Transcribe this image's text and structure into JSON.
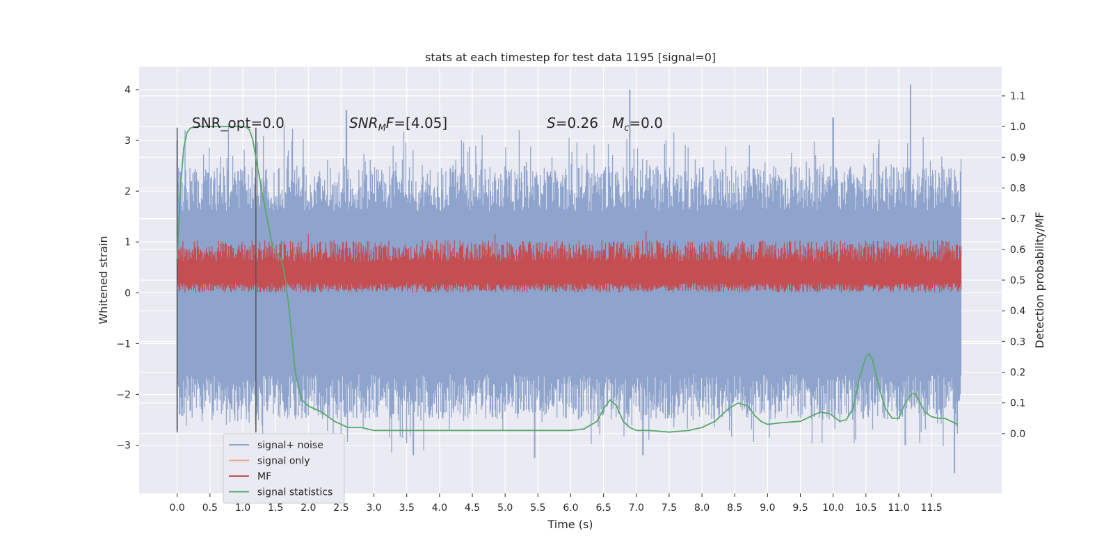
{
  "chart_data": {
    "type": "line",
    "title": "stats at each timestep for test data 1195 [signal=0]",
    "xlabel": "Time (s)",
    "ylabel": "Whitened strain",
    "ylabel_right": "Detection probability/MF",
    "xlim": [
      -0.58,
      12.57
    ],
    "ylim": [
      -3.95,
      4.45
    ],
    "ylim_right": [
      -0.195,
      1.195
    ],
    "x_ticks": [
      0.0,
      0.5,
      1.0,
      1.5,
      2.0,
      2.5,
      3.0,
      3.5,
      4.0,
      4.5,
      5.0,
      5.5,
      6.0,
      6.5,
      7.0,
      7.5,
      8.0,
      8.5,
      9.0,
      9.5,
      10.0,
      10.5,
      11.0,
      11.5
    ],
    "x_tick_labels": [
      "0.0",
      "0.5",
      "1.0",
      "1.5",
      "2.0",
      "2.5",
      "3.0",
      "3.5",
      "4.0",
      "4.5",
      "5.0",
      "5.5",
      "6.0",
      "6.5",
      "7.0",
      "7.5",
      "8.0",
      "8.5",
      "9.0",
      "9.5",
      "10.0",
      "10.5",
      "11.0",
      "11.5"
    ],
    "y_ticks": [
      4,
      3,
      2,
      1,
      0,
      -1,
      -2,
      -3
    ],
    "y_tick_labels": [
      "4",
      "3",
      "2",
      "1",
      "0",
      "−1",
      "−2",
      "−3"
    ],
    "y_ticks_right": [
      1.1,
      1.0,
      0.9,
      0.8,
      0.7,
      0.6,
      0.5,
      0.4,
      0.3,
      0.2,
      0.1,
      0.0
    ],
    "y_tick_labels_right": [
      "1.1",
      "1.0",
      "0.9",
      "0.8",
      "0.7",
      "0.6",
      "0.5",
      "0.4",
      "0.3",
      "0.2",
      "0.1",
      "0.0"
    ],
    "grid": true,
    "legend_position": "lower-left",
    "legend": [
      {
        "label": "signal+ noise",
        "color": "#8fa4cc"
      },
      {
        "label": "signal only",
        "color": "#e8a98c"
      },
      {
        "label": "MF",
        "color": "#c44e52"
      },
      {
        "label": "signal statistics",
        "color": "#55a868"
      }
    ],
    "annotations": {
      "snr_opt": "SNR_opt=0.0",
      "snr_mf_name": "SNR",
      "snr_mf_sub": "M",
      "snr_mf_tail": "F",
      "snr_mf_value": "=[4.05]",
      "s_name": "S",
      "s_value": "=0.26",
      "mc_name": "M",
      "mc_sub": "c",
      "mc_value": "=0.0"
    },
    "series": [
      {
        "name": "signal+ noise",
        "axis": "left",
        "color": "#8fa4cc",
        "description_envelope": {
          "upper_typical": [
            1.6,
            2.5
          ],
          "lower_typical": [
            -1.6,
            -2.5
          ],
          "peaks": [
            [
              0.0,
              3.0
            ],
            [
              2.58,
              3.6
            ],
            [
              6.9,
              4.0
            ],
            [
              10.0,
              3.45
            ],
            [
              11.18,
              4.1
            ]
          ],
          "troughs": [
            [
              0.0,
              -2.7
            ],
            [
              3.6,
              -3.2
            ],
            [
              5.45,
              -3.25
            ],
            [
              7.1,
              -3.2
            ],
            [
              11.1,
              -3.0
            ],
            [
              11.85,
              -3.55
            ]
          ]
        }
      },
      {
        "name": "MF",
        "axis": "right",
        "color": "#c44e52",
        "band": [
          0.46,
          0.59
        ],
        "peaks": [
          [
            2.0,
            0.65
          ],
          [
            4.85,
            0.65
          ],
          [
            7.15,
            0.66
          ],
          [
            8.0,
            0.62
          ],
          [
            9.05,
            0.61
          ]
        ]
      },
      {
        "name": "signal statistics",
        "axis": "right",
        "color": "#55a868",
        "x": [
          0.0,
          0.05,
          0.1,
          0.15,
          0.2,
          0.3,
          0.5,
          0.8,
          1.0,
          1.05,
          1.1,
          1.15,
          1.2,
          1.3,
          1.4,
          1.45,
          1.5,
          1.55,
          1.6,
          1.65,
          1.7,
          1.8,
          1.9,
          2.0,
          2.2,
          2.4,
          2.6,
          2.8,
          3.0,
          3.5,
          4.0,
          4.5,
          5.0,
          5.5,
          6.0,
          6.2,
          6.4,
          6.5,
          6.6,
          6.7,
          6.8,
          6.9,
          7.0,
          7.2,
          7.5,
          7.8,
          8.0,
          8.2,
          8.4,
          8.55,
          8.7,
          8.8,
          8.9,
          9.0,
          9.2,
          9.5,
          9.6,
          9.8,
          9.95,
          10.1,
          10.2,
          10.3,
          10.4,
          10.5,
          10.55,
          10.6,
          10.7,
          10.8,
          10.9,
          11.0,
          11.1,
          11.2,
          11.25,
          11.3,
          11.4,
          11.5,
          11.6,
          11.7,
          11.8,
          11.9
        ],
        "y": [
          0.57,
          0.8,
          0.93,
          0.98,
          0.995,
          1.0,
          1.0,
          1.0,
          1.0,
          0.998,
          0.99,
          0.96,
          0.9,
          0.78,
          0.67,
          0.61,
          0.59,
          0.58,
          0.56,
          0.5,
          0.42,
          0.2,
          0.11,
          0.09,
          0.07,
          0.04,
          0.02,
          0.02,
          0.01,
          0.01,
          0.01,
          0.01,
          0.01,
          0.01,
          0.01,
          0.015,
          0.04,
          0.08,
          0.11,
          0.09,
          0.04,
          0.02,
          0.01,
          0.01,
          0.005,
          0.01,
          0.02,
          0.04,
          0.08,
          0.1,
          0.09,
          0.06,
          0.04,
          0.03,
          0.035,
          0.04,
          0.05,
          0.07,
          0.065,
          0.04,
          0.045,
          0.08,
          0.18,
          0.25,
          0.26,
          0.24,
          0.15,
          0.08,
          0.05,
          0.05,
          0.1,
          0.13,
          0.13,
          0.11,
          0.07,
          0.055,
          0.05,
          0.05,
          0.04,
          0.03
        ]
      }
    ],
    "vertical_lines": [
      0.0,
      1.2
    ]
  }
}
